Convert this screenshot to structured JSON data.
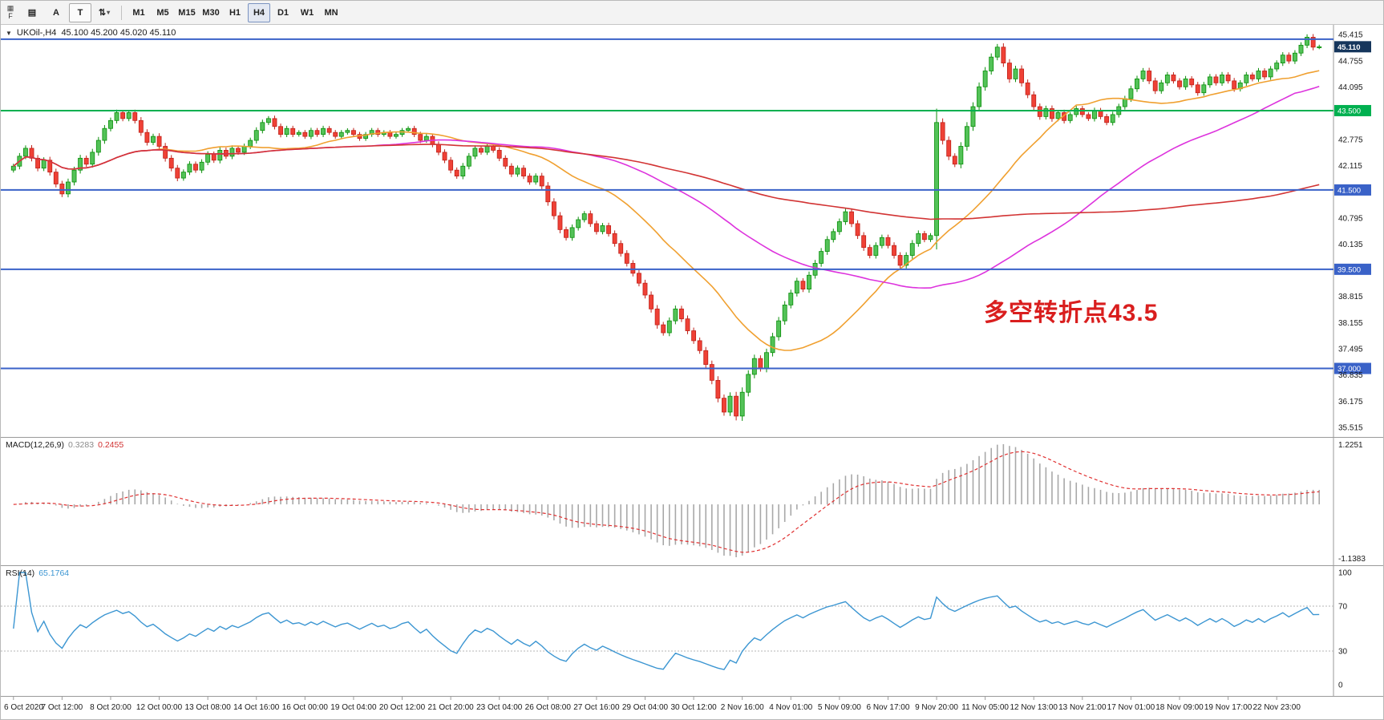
{
  "toolbar": {
    "corner_icon": "▦",
    "corner_label": "F",
    "left_buttons": [
      {
        "name": "chart-grid-icon",
        "glyph": "▤"
      },
      {
        "name": "cursor-a-button",
        "glyph": "A"
      },
      {
        "name": "text-tool-button",
        "glyph": "T"
      },
      {
        "name": "order-arrows-button",
        "glyph": "⇅",
        "caret": "▾"
      }
    ],
    "timeframes": [
      "M1",
      "M5",
      "M15",
      "M30",
      "H1",
      "H4",
      "D1",
      "W1",
      "MN"
    ],
    "active_timeframe": "H4"
  },
  "symbol_header": {
    "collapse_icon": "▼",
    "title": "UKOil-,H4",
    "ohlc": "45.100 45.200 45.020 45.110"
  },
  "annotation": {
    "text": "多空转折点43.5",
    "color": "#d91e1e"
  },
  "panels": {
    "macd": {
      "label": "MACD(12,26,9)",
      "main_value": "0.3283",
      "signal_value": "0.2455",
      "axis_top": "1.2251",
      "axis_bottom": "-1.1383"
    },
    "rsi": {
      "label": "RSI(14)",
      "value": "65.1764",
      "axis_top": "100",
      "axis_bottom": "0"
    }
  },
  "chart_data": {
    "type": "candlestick",
    "symbol": "UKOil-",
    "timeframe": "H4",
    "bars_per_label": 8,
    "x_labels": [
      "6 Oct 2020",
      "7 Oct 12:00",
      "8 Oct 20:00",
      "12 Oct 00:00",
      "13 Oct 08:00",
      "14 Oct 16:00",
      "16 Oct 00:00",
      "19 Oct 04:00",
      "20 Oct 12:00",
      "21 Oct 20:00",
      "23 Oct 04:00",
      "26 Oct 08:00",
      "27 Oct 16:00",
      "29 Oct 04:00",
      "30 Oct 12:00",
      "2 Nov 16:00",
      "4 Nov 01:00",
      "5 Nov 09:00",
      "6 Nov 17:00",
      "9 Nov 20:00",
      "11 Nov 05:00",
      "12 Nov 13:00",
      "13 Nov 21:00",
      "17 Nov 01:00",
      "18 Nov 09:00",
      "19 Nov 17:00",
      "22 Nov 23:00"
    ],
    "open_first": 42.0,
    "closes": [
      42.1,
      42.35,
      42.55,
      42.3,
      42.05,
      42.25,
      41.95,
      41.65,
      41.4,
      41.7,
      42.0,
      42.3,
      42.15,
      42.45,
      42.75,
      43.05,
      43.25,
      43.45,
      43.3,
      43.45,
      43.25,
      42.95,
      42.7,
      42.85,
      42.6,
      42.3,
      42.05,
      41.8,
      41.95,
      42.15,
      42.0,
      42.2,
      42.4,
      42.25,
      42.5,
      42.35,
      42.55,
      42.45,
      42.6,
      42.75,
      43.0,
      43.2,
      43.3,
      43.1,
      42.9,
      43.05,
      42.9,
      42.95,
      42.85,
      43.0,
      42.9,
      43.05,
      42.95,
      42.85,
      42.95,
      43.0,
      42.9,
      42.8,
      42.9,
      43.0,
      42.9,
      42.95,
      42.85,
      42.9,
      43.0,
      43.05,
      42.9,
      42.75,
      42.85,
      42.65,
      42.45,
      42.25,
      42.0,
      41.85,
      42.1,
      42.35,
      42.55,
      42.45,
      42.6,
      42.5,
      42.3,
      42.1,
      41.9,
      42.05,
      41.85,
      41.7,
      41.85,
      41.6,
      41.2,
      40.85,
      40.5,
      40.3,
      40.55,
      40.75,
      40.9,
      40.65,
      40.45,
      40.6,
      40.4,
      40.15,
      39.9,
      39.65,
      39.4,
      39.15,
      38.85,
      38.5,
      38.1,
      37.9,
      38.2,
      38.5,
      38.25,
      37.95,
      37.7,
      37.45,
      37.1,
      36.7,
      36.25,
      35.9,
      36.3,
      35.8,
      36.4,
      36.85,
      37.25,
      37.0,
      37.4,
      37.8,
      38.2,
      38.6,
      38.9,
      39.2,
      39.0,
      39.35,
      39.65,
      39.95,
      40.25,
      40.45,
      40.7,
      40.95,
      40.65,
      40.35,
      40.05,
      39.85,
      40.1,
      40.3,
      40.1,
      39.85,
      39.6,
      39.85,
      40.15,
      40.4,
      40.25,
      40.35,
      43.2,
      42.75,
      42.35,
      42.15,
      42.6,
      43.1,
      43.6,
      44.1,
      44.5,
      44.85,
      45.1,
      44.7,
      44.3,
      44.55,
      44.2,
      43.9,
      43.6,
      43.35,
      43.55,
      43.3,
      43.45,
      43.25,
      43.4,
      43.55,
      43.4,
      43.3,
      43.5,
      43.35,
      43.2,
      43.4,
      43.6,
      43.8,
      44.05,
      44.3,
      44.5,
      44.25,
      44.0,
      44.2,
      44.4,
      44.25,
      44.1,
      44.3,
      44.15,
      43.95,
      44.15,
      44.35,
      44.2,
      44.4,
      44.25,
      44.05,
      44.2,
      44.4,
      44.3,
      44.5,
      44.35,
      44.55,
      44.7,
      44.9,
      44.75,
      44.95,
      45.15,
      45.35,
      45.1,
      45.11
    ],
    "y_axis": {
      "min": 35.515,
      "max": 45.46,
      "tick_labels": [
        "45.415",
        "44.755",
        "44.095",
        "42.775",
        "42.115",
        "40.795",
        "40.135",
        "38.815",
        "38.155",
        "37.495",
        "36.835",
        "36.175",
        "35.515"
      ]
    },
    "hlines": [
      {
        "price": 45.3,
        "color": "#3a62c8",
        "width": 2,
        "badge": null
      },
      {
        "price": 43.5,
        "color": "#00b050",
        "width": 2,
        "badge": "43.500"
      },
      {
        "price": 41.5,
        "color": "#3a62c8",
        "width": 2,
        "badge": "41.500"
      },
      {
        "price": 39.5,
        "color": "#3a62c8",
        "width": 2,
        "badge": "39.500"
      },
      {
        "price": 37.0,
        "color": "#3a62c8",
        "width": 2,
        "badge": "37.000"
      }
    ],
    "current_price": {
      "value": 45.11,
      "badge": "45.110",
      "badge_bg": "#16365c"
    },
    "moving_averages": [
      {
        "period": 24,
        "color": "#f0a030"
      },
      {
        "period": 60,
        "color": "#dd33dd"
      },
      {
        "period": 120,
        "color": "#d23434"
      }
    ],
    "macd": {
      "fast": 12,
      "slow": 26,
      "signal": 9,
      "hist_color": "#a8a8a8",
      "signal_color": "#e03030"
    },
    "rsi": {
      "period": 14,
      "color": "#3c96d2",
      "levels": [
        70,
        30
      ]
    },
    "colors": {
      "up": "#53c258",
      "up_border": "#0a8f0a",
      "down": "#ef4136",
      "down_border": "#c0221a"
    }
  }
}
